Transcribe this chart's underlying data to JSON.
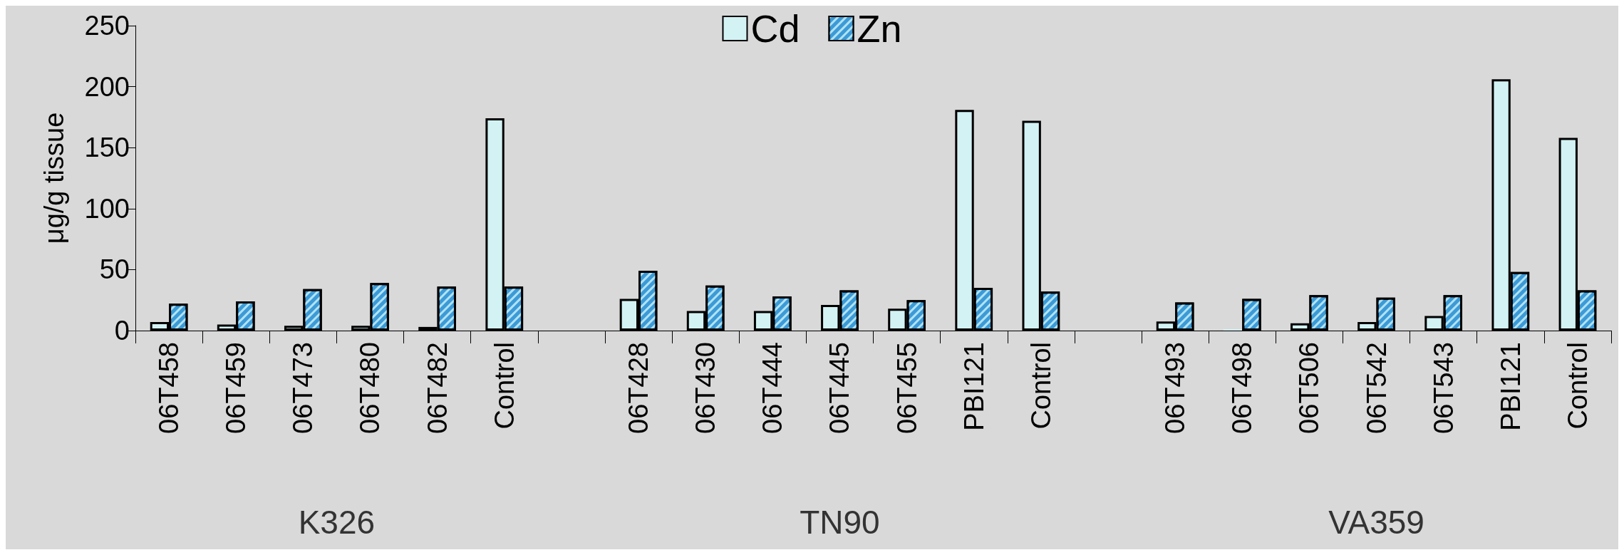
{
  "chart_data": {
    "type": "bar",
    "ylabel": "μg/g tissue",
    "categories": [
      "06T458",
      "06T459",
      "06T473",
      "06T480",
      "06T482",
      "Control",
      null,
      "06T428",
      "06T430",
      "06T444",
      "06T445",
      "06T455",
      "PBI121",
      "Control",
      null,
      "06T493",
      "06T498",
      "06T506",
      "06T542",
      "06T543",
      "PBI121",
      "Control"
    ],
    "series": [
      {
        "name": "Cd",
        "color": "#d3f2f4",
        "values": [
          7,
          5,
          4,
          4,
          3,
          174,
          null,
          26,
          16,
          16,
          21,
          18,
          181,
          172,
          null,
          7.5,
          1,
          6,
          7,
          12,
          206,
          158
        ]
      },
      {
        "name": "Zn",
        "color": "#3c9ad6",
        "values": [
          22,
          24,
          34,
          39,
          36,
          36,
          null,
          49,
          37,
          28,
          33,
          25,
          35,
          32,
          null,
          23,
          26,
          29,
          27,
          29,
          48,
          33
        ]
      }
    ],
    "ylim": [
      0,
      250
    ],
    "yticks": [
      0,
      50,
      100,
      150,
      200,
      250
    ],
    "grid": false,
    "legend": "top",
    "annotations": [
      "K326",
      "TN90",
      "VA359"
    ]
  }
}
